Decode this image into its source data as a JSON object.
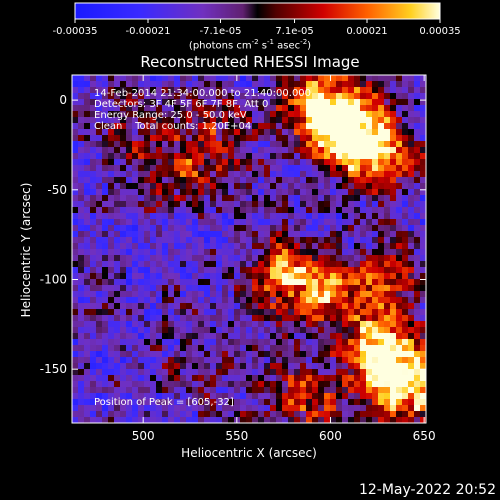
{
  "chart_data": {
    "type": "heatmap",
    "title": "Reconstructed RHESSI Image",
    "xlabel": "Heliocentric X (arcsec)",
    "ylabel": "Heliocentric Y (arcsec)",
    "xlim": [
      462,
      651
    ],
    "ylim": [
      -180,
      14
    ],
    "x_ticks": [
      500,
      550,
      600,
      650
    ],
    "y_ticks": [
      0,
      -50,
      -100,
      -150
    ],
    "colorbar": {
      "range": [
        -0.00035,
        0.00035
      ],
      "tick_values": [
        -0.00035,
        -0.00021,
        -7.1e-05,
        7.1e-05,
        0.00021,
        0.00035
      ],
      "tick_labels": [
        "-0.00035",
        "-0.00021",
        "-7.1e-05",
        "7.1e-05",
        "0.00021",
        "0.00035"
      ],
      "unit_label": "(photons cm",
      "unit_exp1": "-2",
      "unit_mid": " s",
      "unit_exp2": "-1",
      "unit_mid2": " asec",
      "unit_exp3": "-2",
      "unit_end": ")"
    },
    "annotations": [
      "14-Feb-2014 21:34:00.000 to 21:40:00.000",
      "Detectors: 3F 4F 5F 6F 7F 8F, Att 0",
      "Energy Range: 25.0 - 50.0 keV",
      "Clean    Total counts: 1.20E+04"
    ],
    "peak_label": "Position of Peak = [605,-32]",
    "peak": [
      605,
      -32
    ],
    "sources": [
      {
        "x": 607,
        "y": -15,
        "value": 0.00032
      },
      {
        "x": 625,
        "y": -30,
        "value": 0.0003
      },
      {
        "x": 592,
        "y": 2,
        "value": 0.00024
      },
      {
        "x": 640,
        "y": -160,
        "value": 0.00035
      },
      {
        "x": 625,
        "y": -140,
        "value": 0.00028
      },
      {
        "x": 575,
        "y": -95,
        "value": 0.00022
      },
      {
        "x": 595,
        "y": -110,
        "value": 0.0002
      },
      {
        "x": 630,
        "y": -100,
        "value": 0.00018
      },
      {
        "x": 520,
        "y": -40,
        "value": 0.00015
      },
      {
        "x": 540,
        "y": -20,
        "value": 0.00012
      },
      {
        "x": 490,
        "y": -15,
        "value": 0.0001
      },
      {
        "x": 530,
        "y": -150,
        "value": 8e-05
      },
      {
        "x": 575,
        "y": -160,
        "value": 9e-05
      },
      {
        "x": 590,
        "y": -170,
        "value": 0.00012
      }
    ]
  },
  "timestamp": "12-May-2022 20:52"
}
